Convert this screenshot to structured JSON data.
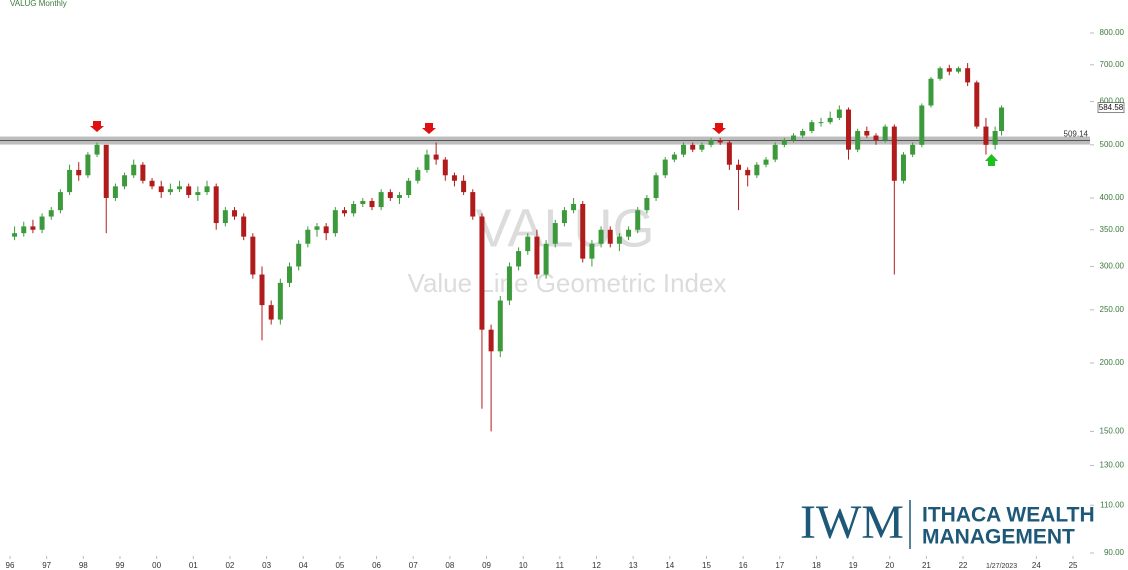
{
  "chart_data": {
    "type": "candlestick",
    "title": "VALUG Monthly",
    "watermark": "VALUG",
    "watermark_subtitle": "Value Line Geometric Index",
    "date_label": "1/27/2023",
    "log_scale": true,
    "up_color": "#3c9a3c",
    "down_color": "#b01c1c",
    "x": [
      1996.125,
      1996.375,
      1996.625,
      1996.875,
      1997.125,
      1997.375,
      1997.625,
      1997.875,
      1998.125,
      1998.375,
      1998.625,
      1998.875,
      1999.125,
      1999.375,
      1999.625,
      1999.875,
      2000.125,
      2000.375,
      2000.625,
      2000.875,
      2001.125,
      2001.375,
      2001.625,
      2001.875,
      2002.125,
      2002.375,
      2002.625,
      2002.875,
      2003.125,
      2003.375,
      2003.625,
      2003.875,
      2004.125,
      2004.375,
      2004.625,
      2004.875,
      2005.125,
      2005.375,
      2005.625,
      2005.875,
      2006.125,
      2006.375,
      2006.625,
      2006.875,
      2007.125,
      2007.375,
      2007.625,
      2007.875,
      2008.125,
      2008.375,
      2008.625,
      2008.875,
      2009.125,
      2009.375,
      2009.625,
      2009.875,
      2010.125,
      2010.375,
      2010.625,
      2010.875,
      2011.125,
      2011.375,
      2011.625,
      2011.875,
      2012.125,
      2012.375,
      2012.625,
      2012.875,
      2013.125,
      2013.375,
      2013.625,
      2013.875,
      2014.125,
      2014.375,
      2014.625,
      2014.875,
      2015.125,
      2015.375,
      2015.625,
      2015.875,
      2016.125,
      2016.375,
      2016.625,
      2016.875,
      2017.125,
      2017.375,
      2017.625,
      2017.875,
      2018.125,
      2018.375,
      2018.625,
      2018.875,
      2019.125,
      2019.375,
      2019.625,
      2019.875,
      2020.125,
      2020.375,
      2020.625,
      2020.875,
      2021.125,
      2021.375,
      2021.625,
      2021.875,
      2022.125,
      2022.375,
      2022.625,
      2022.875,
      2023.05
    ],
    "open": [
      340,
      345,
      355,
      350,
      370,
      380,
      410,
      450,
      440,
      480,
      500,
      400,
      420,
      440,
      460,
      430,
      420,
      410,
      415,
      420,
      405,
      410,
      420,
      360,
      380,
      370,
      340,
      290,
      255,
      240,
      280,
      300,
      330,
      350,
      355,
      345,
      380,
      375,
      390,
      395,
      385,
      410,
      400,
      405,
      430,
      450,
      480,
      470,
      440,
      430,
      410,
      370,
      230,
      210,
      260,
      300,
      320,
      340,
      290,
      330,
      360,
      380,
      390,
      310,
      330,
      350,
      330,
      340,
      350,
      380,
      400,
      440,
      470,
      480,
      500,
      490,
      500,
      510,
      505,
      460,
      450,
      440,
      460,
      470,
      500,
      510,
      520,
      530,
      550,
      550,
      560,
      580,
      490,
      530,
      520,
      510,
      540,
      430,
      480,
      500,
      590,
      660,
      690,
      680,
      690,
      650,
      540,
      500,
      530
    ],
    "high": [
      355,
      362,
      365,
      375,
      385,
      415,
      460,
      465,
      485,
      505,
      500,
      425,
      445,
      470,
      465,
      435,
      430,
      425,
      430,
      425,
      420,
      430,
      425,
      385,
      385,
      375,
      345,
      300,
      260,
      285,
      305,
      335,
      355,
      360,
      360,
      385,
      385,
      395,
      400,
      400,
      415,
      415,
      410,
      435,
      455,
      490,
      505,
      475,
      445,
      440,
      415,
      375,
      235,
      265,
      305,
      325,
      345,
      350,
      335,
      365,
      385,
      400,
      395,
      335,
      355,
      355,
      345,
      355,
      385,
      405,
      445,
      475,
      485,
      505,
      505,
      505,
      515,
      515,
      510,
      470,
      455,
      465,
      475,
      505,
      515,
      525,
      535,
      555,
      560,
      575,
      590,
      585,
      535,
      540,
      525,
      545,
      545,
      485,
      505,
      595,
      665,
      695,
      700,
      695,
      705,
      655,
      560,
      540,
      590
    ],
    "low": [
      335,
      340,
      345,
      345,
      365,
      375,
      405,
      430,
      435,
      475,
      345,
      395,
      415,
      435,
      425,
      415,
      400,
      405,
      410,
      400,
      395,
      405,
      350,
      355,
      365,
      335,
      285,
      220,
      235,
      235,
      275,
      295,
      325,
      340,
      335,
      340,
      370,
      370,
      385,
      380,
      380,
      395,
      390,
      400,
      425,
      445,
      460,
      430,
      420,
      405,
      365,
      165,
      150,
      205,
      255,
      295,
      315,
      285,
      285,
      325,
      355,
      375,
      305,
      300,
      325,
      325,
      320,
      335,
      345,
      375,
      395,
      435,
      465,
      475,
      485,
      485,
      495,
      500,
      450,
      380,
      420,
      435,
      455,
      465,
      495,
      505,
      515,
      525,
      540,
      545,
      555,
      470,
      485,
      515,
      500,
      505,
      290,
      425,
      475,
      495,
      585,
      655,
      670,
      675,
      640,
      535,
      480,
      490,
      520
    ],
    "close": [
      345,
      355,
      350,
      370,
      380,
      410,
      450,
      440,
      480,
      500,
      400,
      420,
      440,
      460,
      430,
      420,
      410,
      415,
      420,
      405,
      410,
      420,
      360,
      380,
      370,
      340,
      290,
      255,
      240,
      280,
      300,
      330,
      350,
      355,
      345,
      380,
      375,
      390,
      395,
      385,
      410,
      400,
      405,
      430,
      450,
      480,
      470,
      440,
      430,
      410,
      370,
      230,
      210,
      260,
      300,
      320,
      340,
      290,
      330,
      360,
      380,
      390,
      310,
      330,
      350,
      330,
      340,
      350,
      380,
      400,
      440,
      470,
      480,
      500,
      490,
      500,
      510,
      505,
      460,
      450,
      440,
      460,
      470,
      500,
      510,
      520,
      530,
      550,
      550,
      560,
      580,
      490,
      530,
      520,
      510,
      540,
      430,
      480,
      500,
      590,
      660,
      690,
      680,
      690,
      650,
      540,
      500,
      530,
      585
    ],
    "hline": {
      "value": 509.14,
      "label": "509.14"
    },
    "last_price": 584.58,
    "xlim": [
      1995.727,
      2026.5
    ],
    "xticks": [
      {
        "value": 1996,
        "label": "96"
      },
      {
        "value": 1997,
        "label": "97"
      },
      {
        "value": 1998,
        "label": "98"
      },
      {
        "value": 1999,
        "label": "99"
      },
      {
        "value": 2000,
        "label": "00"
      },
      {
        "value": 2001,
        "label": "01"
      },
      {
        "value": 2002,
        "label": "02"
      },
      {
        "value": 2003,
        "label": "03"
      },
      {
        "value": 2004,
        "label": "04"
      },
      {
        "value": 2005,
        "label": "05"
      },
      {
        "value": 2006,
        "label": "06"
      },
      {
        "value": 2007,
        "label": "07"
      },
      {
        "value": 2008,
        "label": "08"
      },
      {
        "value": 2009,
        "label": "09"
      },
      {
        "value": 2010,
        "label": "10"
      },
      {
        "value": 2011,
        "label": "11"
      },
      {
        "value": 2012,
        "label": "12"
      },
      {
        "value": 2013,
        "label": "13"
      },
      {
        "value": 2014,
        "label": "14"
      },
      {
        "value": 2015,
        "label": "15"
      },
      {
        "value": 2016,
        "label": "16"
      },
      {
        "value": 2017,
        "label": "17"
      },
      {
        "value": 2018,
        "label": "18"
      },
      {
        "value": 2019,
        "label": "19"
      },
      {
        "value": 2020,
        "label": "20"
      },
      {
        "value": 2021,
        "label": "21"
      },
      {
        "value": 2022,
        "label": "22"
      },
      {
        "value": 2024,
        "label": "24"
      },
      {
        "value": 2025,
        "label": "25"
      }
    ],
    "ylim": [
      90,
      800
    ],
    "yticks": [
      {
        "value": 90,
        "label": "90.00"
      },
      {
        "value": 110,
        "label": "110.00"
      },
      {
        "value": 130,
        "label": "130.00"
      },
      {
        "value": 150,
        "label": "150.00"
      },
      {
        "value": 200,
        "label": "200.00"
      },
      {
        "value": 250,
        "label": "250.00"
      },
      {
        "value": 300,
        "label": "300.00"
      },
      {
        "value": 350,
        "label": "350.00"
      },
      {
        "value": 400,
        "label": "400.00"
      },
      {
        "value": 500,
        "label": "500.00"
      },
      {
        "value": 600,
        "label": "600.00"
      },
      {
        "value": 700,
        "label": "700.00"
      },
      {
        "value": 800,
        "label": "800.00"
      }
    ]
  },
  "logo": {
    "mark": "IWM",
    "line1": "ITHACA WEALTH",
    "line2": "MANAGEMENT"
  }
}
